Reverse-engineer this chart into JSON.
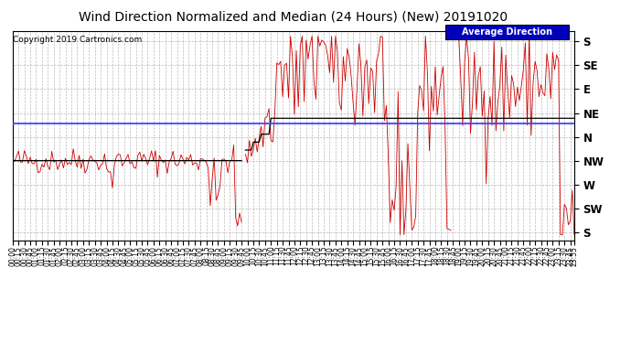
{
  "title": "Wind Direction Normalized and Median (24 Hours) (New) 20191020",
  "copyright": "Copyright 2019 Cartronics.com",
  "legend_label": "Average Direction",
  "background_color": "#ffffff",
  "plot_bg": "#ffffff",
  "grid_color": "#aaaaaa",
  "red_line_color": "#cc0000",
  "black_line_color": "#000000",
  "blue_line_color": "#4444ff",
  "y_labels": [
    "S",
    "SE",
    "E",
    "NE",
    "N",
    "NW",
    "W",
    "SW",
    "S"
  ],
  "y_ticks": [
    360,
    315,
    270,
    225,
    180,
    135,
    90,
    45,
    0
  ],
  "ylim": [
    -15,
    380
  ],
  "average_line_y": 205,
  "title_fontsize": 10,
  "tick_fontsize": 5.5,
  "ylabel_fontsize": 8.5
}
